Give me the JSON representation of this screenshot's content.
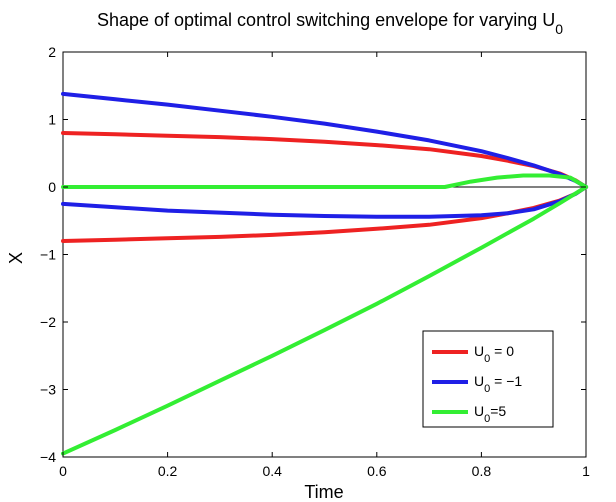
{
  "chart_data": {
    "type": "line",
    "title_main": "Shape of optimal control switching envelope for varying U",
    "title_sub": "0",
    "xlabel": "Time",
    "ylabel": "X",
    "xlim": [
      0,
      1
    ],
    "ylim": [
      -4,
      2
    ],
    "xticks": [
      0,
      0.2,
      0.4,
      0.6,
      0.8,
      1
    ],
    "xtick_labels": [
      "0",
      "0.2",
      "0.4",
      "0.6",
      "0.8",
      "1"
    ],
    "yticks": [
      -4,
      -3,
      -2,
      -1,
      0,
      1,
      2
    ],
    "ytick_labels": [
      "−4",
      "−3",
      "−2",
      "−1",
      "0",
      "1",
      "2"
    ],
    "grid": false,
    "legend_position": "bottom-right",
    "zero_line": {
      "y": 0,
      "color": "#000000"
    },
    "series": [
      {
        "legend_main": "U",
        "legend_sub": "0",
        "legend_rest": " = 0",
        "color": "#ee2222",
        "curves": [
          {
            "x": [
              0,
              0.1,
              0.2,
              0.3,
              0.4,
              0.5,
              0.6,
              0.7,
              0.8,
              0.85,
              0.9,
              0.95,
              0.98,
              1.0
            ],
            "y": [
              0.8,
              0.78,
              0.76,
              0.74,
              0.71,
              0.67,
              0.62,
              0.56,
              0.46,
              0.39,
              0.31,
              0.2,
              0.1,
              0.0
            ]
          },
          {
            "x": [
              0,
              0.1,
              0.2,
              0.3,
              0.4,
              0.5,
              0.6,
              0.7,
              0.8,
              0.85,
              0.9,
              0.95,
              0.98,
              1.0
            ],
            "y": [
              -0.8,
              -0.78,
              -0.76,
              -0.74,
              -0.71,
              -0.67,
              -0.62,
              -0.56,
              -0.46,
              -0.39,
              -0.31,
              -0.2,
              -0.1,
              0.0
            ]
          }
        ]
      },
      {
        "legend_main": "U",
        "legend_sub": "0",
        "legend_rest": " = −1",
        "color": "#1f1fe6",
        "curves": [
          {
            "x": [
              0,
              0.1,
              0.2,
              0.3,
              0.4,
              0.5,
              0.6,
              0.7,
              0.8,
              0.85,
              0.9,
              0.95,
              0.98,
              1.0
            ],
            "y": [
              1.38,
              1.3,
              1.22,
              1.13,
              1.04,
              0.94,
              0.82,
              0.69,
              0.53,
              0.43,
              0.32,
              0.19,
              0.09,
              0.0
            ]
          },
          {
            "x": [
              0,
              0.1,
              0.2,
              0.3,
              0.4,
              0.5,
              0.6,
              0.7,
              0.8,
              0.85,
              0.9,
              0.95,
              0.98,
              1.0
            ],
            "y": [
              -0.25,
              -0.3,
              -0.35,
              -0.38,
              -0.41,
              -0.43,
              -0.44,
              -0.44,
              -0.42,
              -0.39,
              -0.33,
              -0.21,
              -0.1,
              0.0
            ]
          }
        ]
      },
      {
        "legend_main": "U",
        "legend_sub": "0",
        "legend_rest": "=5",
        "color": "#33ee33",
        "curves": [
          {
            "x": [
              0,
              0.1,
              0.2,
              0.3,
              0.4,
              0.5,
              0.6,
              0.7,
              0.73,
              0.78,
              0.83,
              0.88,
              0.93,
              0.97,
              1.0
            ],
            "y": [
              0,
              0,
              0,
              0,
              0,
              0,
              0,
              0,
              0.0,
              0.08,
              0.14,
              0.17,
              0.17,
              0.14,
              0.0
            ]
          },
          {
            "x": [
              0,
              0.1,
              0.2,
              0.3,
              0.4,
              0.5,
              0.6,
              0.7,
              0.8,
              0.9,
              0.95,
              1.0
            ],
            "y": [
              -3.95,
              -3.6,
              -3.24,
              -2.87,
              -2.5,
              -2.12,
              -1.73,
              -1.32,
              -0.9,
              -0.47,
              -0.24,
              0.0
            ]
          }
        ]
      }
    ]
  }
}
